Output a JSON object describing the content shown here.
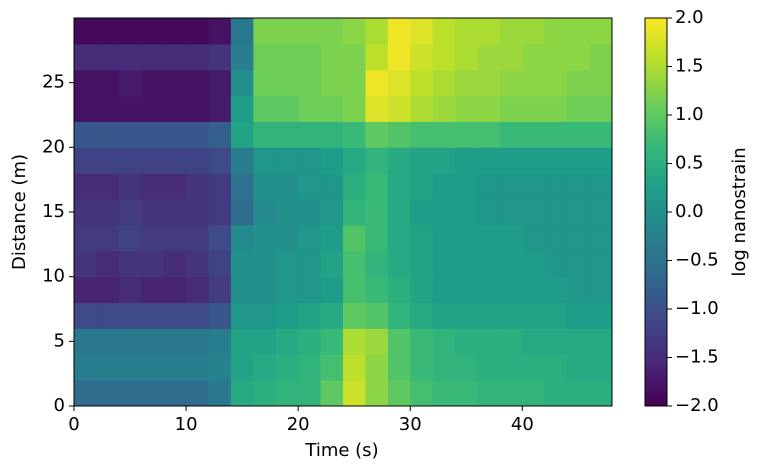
{
  "chart_data": {
    "type": "heatmap",
    "colormap": "viridis",
    "xlabel": "Time (s)",
    "ylabel": "Distance (m)",
    "colorbar_label": "log nanostrain",
    "xlim": [
      0,
      48
    ],
    "ylim": [
      0,
      30
    ],
    "zlim": [
      -2,
      2
    ],
    "xticks": [
      0,
      10,
      20,
      30,
      40
    ],
    "yticks": [
      0,
      5,
      10,
      15,
      20,
      25
    ],
    "zticks": [
      {
        "value": -2,
        "label": "−2.0"
      },
      {
        "value": -1.5,
        "label": "−1.5"
      },
      {
        "value": -1,
        "label": "−1.0"
      },
      {
        "value": -0.5,
        "label": "−0.5"
      },
      {
        "value": 0,
        "label": "0.0"
      },
      0.5,
      {
        "value": 1,
        "label": "1.0"
      },
      1.5,
      {
        "value": 2,
        "label": "2.0"
      }
    ],
    "xbins": [
      0,
      2,
      4,
      6,
      8,
      10,
      12,
      14,
      16,
      18,
      20,
      22,
      24,
      26,
      28,
      30,
      32,
      34,
      36,
      38,
      40,
      42,
      44,
      46,
      48
    ],
    "ybins": [
      0,
      2,
      4,
      6,
      8,
      10,
      12,
      14,
      16,
      18,
      20,
      22,
      24,
      26,
      28,
      30
    ],
    "values": [
      [
        -0.6,
        -0.6,
        -0.6,
        -0.6,
        -0.6,
        -0.6,
        -0.4,
        0.4,
        0.5,
        0.6,
        0.6,
        1.0,
        1.7,
        1.3,
        1.0,
        0.8,
        0.7,
        0.7,
        0.6,
        0.6,
        0.6,
        0.5,
        0.5,
        0.5
      ],
      [
        -0.3,
        -0.3,
        -0.3,
        -0.3,
        -0.3,
        -0.3,
        -0.2,
        0.3,
        0.4,
        0.5,
        0.6,
        0.8,
        1.6,
        1.3,
        0.9,
        0.7,
        0.6,
        0.6,
        0.5,
        0.5,
        0.5,
        0.5,
        0.4,
        0.4
      ],
      [
        -0.4,
        -0.4,
        -0.4,
        -0.4,
        -0.4,
        -0.4,
        -0.3,
        0.3,
        0.3,
        0.4,
        0.5,
        0.7,
        1.5,
        1.4,
        0.9,
        0.7,
        0.6,
        0.5,
        0.5,
        0.5,
        0.4,
        0.4,
        0.4,
        0.4
      ],
      [
        -1.1,
        -1.1,
        -1.1,
        -1.1,
        -1.1,
        -1.1,
        -0.9,
        0.1,
        0.1,
        0.2,
        0.3,
        0.4,
        1.0,
        0.9,
        0.6,
        0.4,
        0.3,
        0.3,
        0.3,
        0.3,
        0.3,
        0.3,
        0.2,
        0.2
      ],
      [
        -1.6,
        -1.6,
        -1.5,
        -1.6,
        -1.6,
        -1.5,
        -1.3,
        0.0,
        0.0,
        0.1,
        0.1,
        0.2,
        0.8,
        0.7,
        0.5,
        0.3,
        0.2,
        0.2,
        0.2,
        0.2,
        0.2,
        0.2,
        0.1,
        0.1
      ],
      [
        -1.4,
        -1.5,
        -1.4,
        -1.4,
        -1.5,
        -1.4,
        -1.2,
        0.0,
        0.0,
        0.1,
        0.1,
        0.3,
        0.8,
        0.6,
        0.4,
        0.3,
        0.2,
        0.2,
        0.2,
        0.2,
        0.2,
        0.1,
        0.1,
        0.1
      ],
      [
        -1.3,
        -1.3,
        -1.2,
        -1.3,
        -1.3,
        -1.3,
        -1.1,
        -0.1,
        0.0,
        0.0,
        0.1,
        0.2,
        0.9,
        0.7,
        0.4,
        0.3,
        0.2,
        0.2,
        0.2,
        0.2,
        0.1,
        0.1,
        0.1,
        0.1
      ],
      [
        -1.4,
        -1.4,
        -1.3,
        -1.4,
        -1.4,
        -1.4,
        -1.3,
        -0.6,
        -0.1,
        0.0,
        0.0,
        0.1,
        0.6,
        0.7,
        0.4,
        0.2,
        0.2,
        0.2,
        0.1,
        0.1,
        0.1,
        0.1,
        0.1,
        0.1
      ],
      [
        -1.5,
        -1.5,
        -1.4,
        -1.5,
        -1.5,
        -1.4,
        -1.3,
        -0.5,
        0.0,
        0.0,
        0.1,
        0.1,
        0.5,
        0.7,
        0.4,
        0.3,
        0.2,
        0.2,
        0.1,
        0.1,
        0.1,
        0.1,
        0.1,
        0.1
      ],
      [
        -1.2,
        -1.2,
        -1.2,
        -1.2,
        -1.2,
        -1.2,
        -1.1,
        -0.3,
        0.1,
        0.1,
        0.1,
        0.2,
        0.4,
        0.6,
        0.4,
        0.3,
        0.3,
        0.2,
        0.2,
        0.2,
        0.2,
        0.2,
        0.2,
        0.2
      ],
      [
        -0.9,
        -0.9,
        -0.9,
        -0.9,
        -0.9,
        -0.9,
        -0.8,
        0.3,
        0.6,
        0.6,
        0.6,
        0.6,
        0.7,
        1.0,
        0.9,
        0.8,
        0.8,
        0.8,
        0.8,
        0.7,
        0.7,
        0.7,
        0.7,
        0.7
      ],
      [
        -1.8,
        -1.8,
        -1.8,
        -1.8,
        -1.8,
        -1.8,
        -1.7,
        0.2,
        1.0,
        1.0,
        1.1,
        1.1,
        1.2,
        1.8,
        1.7,
        1.5,
        1.4,
        1.3,
        1.3,
        1.2,
        1.2,
        1.2,
        1.1,
        1.1
      ],
      [
        -1.8,
        -1.8,
        -1.7,
        -1.8,
        -1.8,
        -1.8,
        -1.7,
        0.0,
        1.1,
        1.1,
        1.1,
        1.2,
        1.2,
        1.9,
        1.8,
        1.6,
        1.5,
        1.4,
        1.4,
        1.3,
        1.3,
        1.3,
        1.2,
        1.2
      ],
      [
        -1.5,
        -1.5,
        -1.5,
        -1.5,
        -1.5,
        -1.5,
        -1.4,
        -0.3,
        1.1,
        1.1,
        1.1,
        1.2,
        1.2,
        1.6,
        1.9,
        1.7,
        1.6,
        1.5,
        1.4,
        1.4,
        1.3,
        1.3,
        1.3,
        1.2
      ],
      [
        -1.9,
        -1.9,
        -1.9,
        -1.9,
        -1.9,
        -1.9,
        -1.8,
        -0.4,
        1.2,
        1.2,
        1.2,
        1.2,
        1.3,
        1.5,
        1.9,
        1.8,
        1.6,
        1.5,
        1.5,
        1.4,
        1.4,
        1.3,
        1.3,
        1.3
      ]
    ]
  }
}
